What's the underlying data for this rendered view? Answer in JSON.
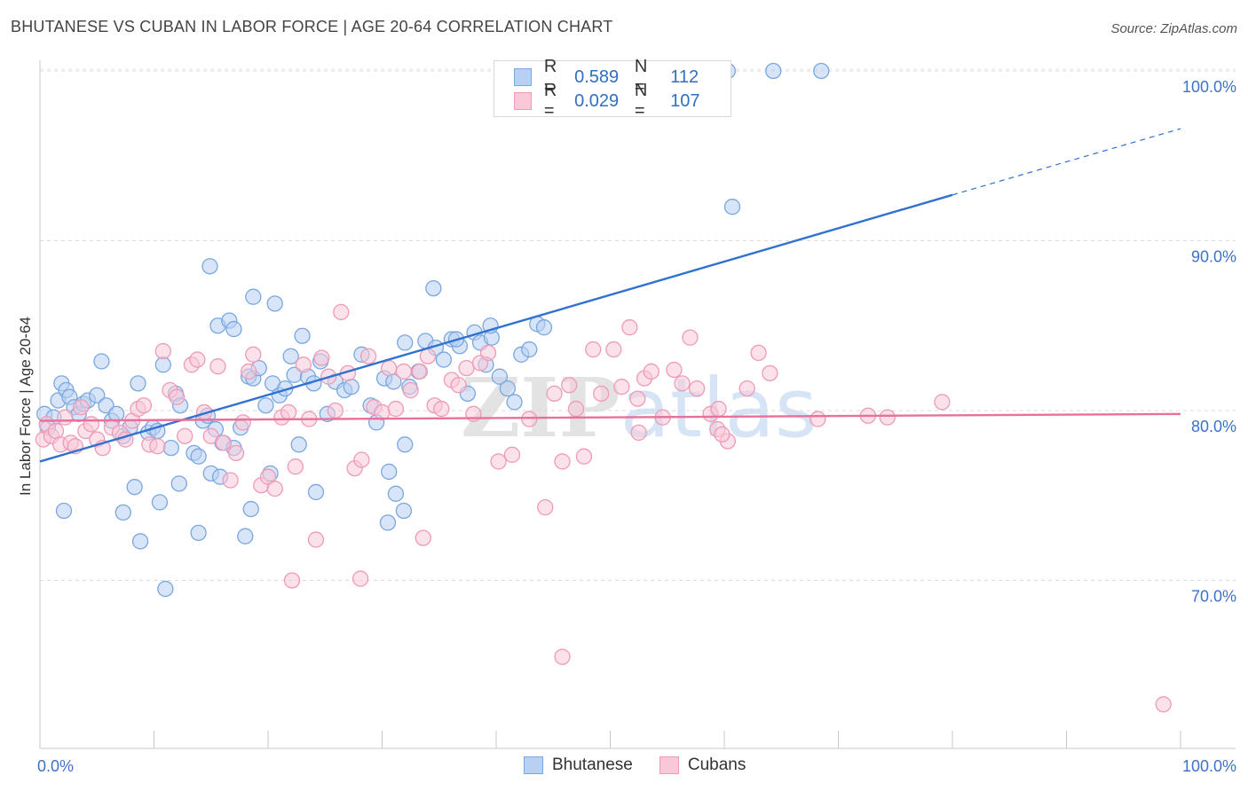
{
  "title": "BHUTANESE VS CUBAN IN LABOR FORCE | AGE 20-64 CORRELATION CHART",
  "source": "Source: ZipAtlas.com",
  "chart_data": {
    "type": "scatter",
    "ylabel": "In Labor Force | Age 20-64",
    "xlim": [
      0,
      100
    ],
    "ylim": [
      61,
      101.5
    ],
    "x_tick_labels": [
      "0.0%",
      "100.0%"
    ],
    "y_ticks": [
      {
        "value": 100,
        "label": "100.0%"
      },
      {
        "value": 90,
        "label": "90.0%"
      },
      {
        "value": 80,
        "label": "80.0%"
      },
      {
        "value": 70,
        "label": "70.0%"
      }
    ],
    "grid": "horizontal-dashed",
    "watermark": "ZIPatlas",
    "legend": {
      "position": "top-center",
      "entries": [
        {
          "r_label": "R =",
          "r_value": "0.589",
          "n_label": "N =",
          "n_value": "112"
        },
        {
          "r_label": "R =",
          "r_value": "0.029",
          "n_label": "N =",
          "n_value": "107"
        }
      ]
    },
    "series": [
      {
        "name": "Bhutanese",
        "color": "#7aa7e0",
        "fill": "#b8d0f2",
        "line_color": "#2f72d0",
        "trend": {
          "x0": 0,
          "y0": 77.0,
          "x1": 80,
          "y1": 92.7,
          "dash_to_x": 100,
          "dash_to_y": 96.6
        },
        "points": [
          [
            0.4,
            79.8
          ],
          [
            0.7,
            79.0
          ],
          [
            1.2,
            79.6
          ],
          [
            1.6,
            80.6
          ],
          [
            1.9,
            81.6
          ],
          [
            2.3,
            81.2
          ],
          [
            2.6,
            80.8
          ],
          [
            3.0,
            80.2
          ],
          [
            3.4,
            79.8
          ],
          [
            3.8,
            80.4
          ],
          [
            4.2,
            80.6
          ],
          [
            5.0,
            80.9
          ],
          [
            5.4,
            82.9
          ],
          [
            5.8,
            80.3
          ],
          [
            6.3,
            79.4
          ],
          [
            6.7,
            79.8
          ],
          [
            7.3,
            78.5
          ],
          [
            7.9,
            79.0
          ],
          [
            8.6,
            81.6
          ],
          [
            9.5,
            78.7
          ],
          [
            9.9,
            79.0
          ],
          [
            10.3,
            78.8
          ],
          [
            10.8,
            82.7
          ],
          [
            11.5,
            77.8
          ],
          [
            11.9,
            81.0
          ],
          [
            12.3,
            80.3
          ],
          [
            13.5,
            77.5
          ],
          [
            13.9,
            77.3
          ],
          [
            14.3,
            79.4
          ],
          [
            14.7,
            79.7
          ],
          [
            15.0,
            76.3
          ],
          [
            15.4,
            78.9
          ],
          [
            16.0,
            78.1
          ],
          [
            17.0,
            77.8
          ],
          [
            17.6,
            79.0
          ],
          [
            18.3,
            82.0
          ],
          [
            18.7,
            81.9
          ],
          [
            19.2,
            82.5
          ],
          [
            19.8,
            80.3
          ],
          [
            20.4,
            81.6
          ],
          [
            21.0,
            80.9
          ],
          [
            21.5,
            81.3
          ],
          [
            22.0,
            83.2
          ],
          [
            22.3,
            82.1
          ],
          [
            22.7,
            78.0
          ],
          [
            23.5,
            82.0
          ],
          [
            24.0,
            81.6
          ],
          [
            24.6,
            82.9
          ],
          [
            25.2,
            79.8
          ],
          [
            25.9,
            81.7
          ],
          [
            26.7,
            81.2
          ],
          [
            27.3,
            81.4
          ],
          [
            28.2,
            83.3
          ],
          [
            29.0,
            80.3
          ],
          [
            29.5,
            79.3
          ],
          [
            30.2,
            81.9
          ],
          [
            31.0,
            81.7
          ],
          [
            32.0,
            84.0
          ],
          [
            32.4,
            81.4
          ],
          [
            33.2,
            82.3
          ],
          [
            33.8,
            84.1
          ],
          [
            34.7,
            83.7
          ],
          [
            35.4,
            83.0
          ],
          [
            36.1,
            84.2
          ],
          [
            36.8,
            83.8
          ],
          [
            37.5,
            81.0
          ],
          [
            38.1,
            84.6
          ],
          [
            38.6,
            84.0
          ],
          [
            39.1,
            82.7
          ],
          [
            39.6,
            84.3
          ],
          [
            40.3,
            82.0
          ],
          [
            41.0,
            81.3
          ],
          [
            41.6,
            80.5
          ],
          [
            42.2,
            83.3
          ],
          [
            42.9,
            83.6
          ],
          [
            43.6,
            85.1
          ],
          [
            44.2,
            84.9
          ],
          [
            2.1,
            74.1
          ],
          [
            7.3,
            74.0
          ],
          [
            8.3,
            75.5
          ],
          [
            8.8,
            72.3
          ],
          [
            10.5,
            74.6
          ],
          [
            11.0,
            69.5
          ],
          [
            12.2,
            75.7
          ],
          [
            13.9,
            72.8
          ],
          [
            15.8,
            76.1
          ],
          [
            18.0,
            72.6
          ],
          [
            18.5,
            74.2
          ],
          [
            20.2,
            76.3
          ],
          [
            24.2,
            75.2
          ],
          [
            30.5,
            73.4
          ],
          [
            31.2,
            75.1
          ],
          [
            31.9,
            74.1
          ],
          [
            30.6,
            76.4
          ],
          [
            32.0,
            78.0
          ],
          [
            14.9,
            88.5
          ],
          [
            15.6,
            85.0
          ],
          [
            16.6,
            85.3
          ],
          [
            17.0,
            84.8
          ],
          [
            18.7,
            86.7
          ],
          [
            20.6,
            86.3
          ],
          [
            23.0,
            84.4
          ],
          [
            34.5,
            87.2
          ],
          [
            36.5,
            84.2
          ],
          [
            39.5,
            85.0
          ],
          [
            60.7,
            92.0
          ],
          [
            60.3,
            100.0
          ],
          [
            64.3,
            100.0
          ],
          [
            68.5,
            100.0
          ]
        ]
      },
      {
        "name": "Cubans",
        "color": "#ef9ab6",
        "fill": "#f8c8d7",
        "line_color": "#e8709a",
        "trend": {
          "x0": 0,
          "y0": 79.4,
          "x1": 100,
          "y1": 79.8
        },
        "points": [
          [
            0.3,
            78.3
          ],
          [
            0.6,
            79.2
          ],
          [
            1.0,
            78.5
          ],
          [
            1.4,
            78.8
          ],
          [
            1.8,
            78.0
          ],
          [
            2.2,
            79.6
          ],
          [
            2.7,
            78.1
          ],
          [
            3.1,
            77.9
          ],
          [
            3.6,
            80.2
          ],
          [
            4.0,
            78.8
          ],
          [
            4.5,
            79.2
          ],
          [
            5.0,
            78.3
          ],
          [
            5.5,
            77.8
          ],
          [
            6.3,
            79.0
          ],
          [
            7.0,
            78.7
          ],
          [
            7.5,
            78.3
          ],
          [
            8.1,
            79.4
          ],
          [
            8.6,
            80.1
          ],
          [
            9.1,
            80.3
          ],
          [
            9.6,
            78.0
          ],
          [
            10.3,
            77.9
          ],
          [
            10.8,
            83.5
          ],
          [
            11.4,
            81.2
          ],
          [
            12.0,
            80.8
          ],
          [
            12.7,
            78.5
          ],
          [
            13.3,
            82.7
          ],
          [
            13.8,
            83.0
          ],
          [
            14.4,
            79.9
          ],
          [
            15.0,
            78.5
          ],
          [
            15.6,
            82.6
          ],
          [
            16.1,
            78.1
          ],
          [
            16.7,
            75.9
          ],
          [
            17.2,
            77.5
          ],
          [
            17.8,
            79.3
          ],
          [
            18.3,
            82.3
          ],
          [
            18.7,
            83.3
          ],
          [
            19.4,
            75.6
          ],
          [
            20.0,
            76.1
          ],
          [
            20.6,
            75.4
          ],
          [
            21.2,
            79.6
          ],
          [
            21.8,
            79.9
          ],
          [
            22.4,
            76.7
          ],
          [
            23.1,
            82.7
          ],
          [
            23.6,
            79.5
          ],
          [
            24.2,
            72.4
          ],
          [
            24.7,
            83.1
          ],
          [
            25.3,
            82.0
          ],
          [
            25.9,
            80.0
          ],
          [
            26.4,
            85.8
          ],
          [
            27.0,
            82.2
          ],
          [
            27.6,
            76.6
          ],
          [
            28.2,
            77.1
          ],
          [
            28.8,
            83.2
          ],
          [
            29.3,
            80.2
          ],
          [
            30.0,
            79.9
          ],
          [
            30.6,
            82.5
          ],
          [
            31.2,
            80.1
          ],
          [
            31.9,
            82.3
          ],
          [
            32.5,
            81.2
          ],
          [
            33.3,
            82.3
          ],
          [
            34.0,
            83.2
          ],
          [
            34.6,
            80.3
          ],
          [
            35.2,
            80.1
          ],
          [
            36.1,
            81.8
          ],
          [
            36.7,
            81.5
          ],
          [
            37.4,
            82.5
          ],
          [
            38.0,
            79.8
          ],
          [
            38.6,
            82.8
          ],
          [
            39.3,
            83.4
          ],
          [
            40.2,
            77.0
          ],
          [
            41.4,
            77.4
          ],
          [
            42.9,
            79.5
          ],
          [
            44.3,
            74.3
          ],
          [
            45.1,
            81.0
          ],
          [
            45.8,
            77.0
          ],
          [
            46.4,
            81.5
          ],
          [
            47.0,
            80.1
          ],
          [
            47.7,
            77.3
          ],
          [
            48.5,
            83.6
          ],
          [
            49.2,
            81.0
          ],
          [
            50.3,
            83.6
          ],
          [
            51.0,
            81.4
          ],
          [
            51.7,
            84.9
          ],
          [
            52.4,
            80.7
          ],
          [
            53.0,
            81.9
          ],
          [
            53.6,
            82.3
          ],
          [
            54.6,
            79.6
          ],
          [
            55.6,
            82.4
          ],
          [
            56.3,
            81.6
          ],
          [
            57.0,
            84.3
          ],
          [
            57.6,
            81.3
          ],
          [
            58.8,
            79.8
          ],
          [
            59.5,
            80.1
          ],
          [
            60.3,
            78.2
          ],
          [
            62.0,
            81.3
          ],
          [
            63.0,
            83.4
          ],
          [
            64.0,
            82.2
          ],
          [
            22.1,
            70.0
          ],
          [
            28.1,
            70.1
          ],
          [
            33.6,
            72.5
          ],
          [
            45.8,
            65.5
          ],
          [
            52.5,
            78.7
          ],
          [
            59.4,
            78.9
          ],
          [
            59.8,
            78.6
          ],
          [
            72.6,
            79.7
          ],
          [
            74.3,
            79.6
          ],
          [
            79.1,
            80.5
          ],
          [
            68.2,
            79.5
          ],
          [
            98.5,
            62.7
          ]
        ]
      }
    ]
  }
}
